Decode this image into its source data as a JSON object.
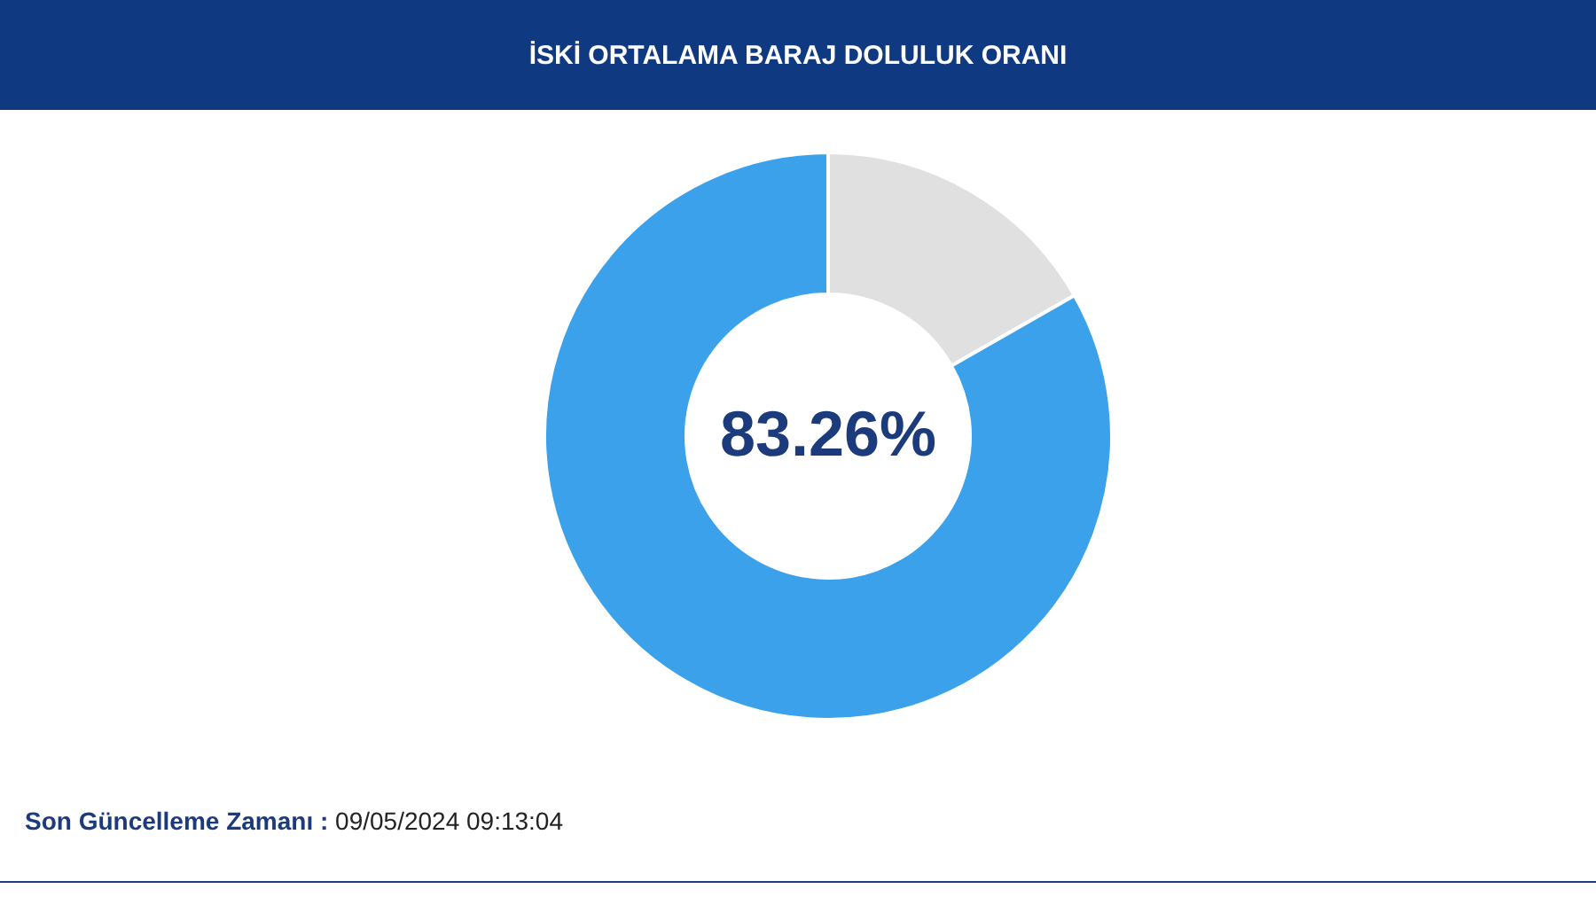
{
  "chart_data": {
    "type": "donut",
    "title": "İSKİ ORTALAMA BARAJ DOLULUK ORANI",
    "categories": [
      null,
      null
    ],
    "values": [
      16.74,
      83.26
    ],
    "colors": [
      "#e0e0e0",
      "#3aa1ea"
    ],
    "annotations": [
      "83.26%",
      "Son Güncelleme Zamanı :",
      "09/05/2024 09:13:04"
    ]
  }
}
